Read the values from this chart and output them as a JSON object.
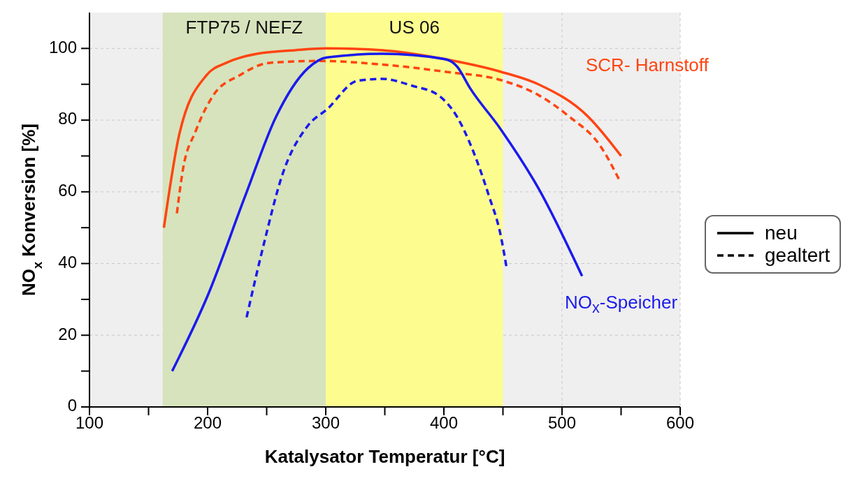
{
  "chart_data": {
    "type": "line",
    "xlabel": "Katalysator Temperatur [°C]",
    "ylabel": "NO$_{x}$ Konversion [%]",
    "xlim": [
      100,
      600
    ],
    "ylim": [
      0,
      110
    ],
    "xticks": [
      100,
      {
        "value": 150,
        "label": null
      },
      200,
      {
        "value": 250,
        "label": null
      },
      300,
      {
        "value": 350,
        "label": null
      },
      400,
      {
        "value": 450,
        "label": null
      },
      500,
      {
        "value": 550,
        "label": null
      },
      600
    ],
    "yticks": [
      0,
      {
        "value": 10,
        "label": null
      },
      20,
      {
        "value": 30,
        "label": null
      },
      40,
      {
        "value": 50,
        "label": null
      },
      60,
      {
        "value": 70,
        "label": null
      },
      80,
      {
        "value": 90,
        "label": null
      },
      100
    ],
    "grid": true,
    "marker": "none",
    "bands": [
      {
        "axis": "x",
        "from": 162,
        "to": 300,
        "label": "FTP75 / NEFZ",
        "color": "#d7e3bc"
      },
      {
        "axis": "x",
        "from": 300,
        "to": 450,
        "label": "US 06",
        "color": "#fdfd8f"
      }
    ],
    "series": [
      {
        "color": "#ff4411",
        "line_style": "solid",
        "x": [
          163,
          176,
          199,
          216,
          242,
          274,
          301,
          348,
          401,
          448,
          480,
          522,
          550
        ],
        "values": [
          50,
          76,
          92.5,
          96,
          98.5,
          99.5,
          100,
          99.5,
          97,
          93.5,
          90,
          81,
          70
        ]
      },
      {
        "color": "#ff4411",
        "line_style": "dashed",
        "x": [
          174,
          179,
          190,
          205,
          227,
          253,
          295,
          348,
          401,
          450,
          480,
          506,
          532,
          549
        ],
        "values": [
          54,
          66,
          77,
          87,
          92.5,
          96,
          96.5,
          95.5,
          93.5,
          91,
          87,
          81,
          73,
          63
        ]
      },
      {
        "color": "#1a1aee",
        "line_style": "solid",
        "x": [
          170,
          200,
          232,
          258,
          285,
          301,
          348,
          401,
          411,
          422,
          448,
          480,
          517
        ],
        "values": [
          10,
          31,
          59,
          81,
          94.5,
          97.5,
          98.5,
          97,
          95,
          89,
          77.5,
          61,
          36.5
        ]
      },
      {
        "color": "#1a1aee",
        "line_style": "dashed",
        "x": [
          233,
          248,
          263,
          285,
          301,
          327,
          348,
          374,
          395,
          411,
          424,
          438,
          448,
          453
        ],
        "values": [
          25,
          46,
          64.5,
          78.5,
          83,
          91,
          91.5,
          89.5,
          87,
          81,
          72,
          59,
          48,
          39
        ]
      }
    ],
    "annotations": [
      "SCR- Harnstoff",
      "NO$_{x}$-Speicher",
      "neu",
      "gealtert"
    ]
  }
}
